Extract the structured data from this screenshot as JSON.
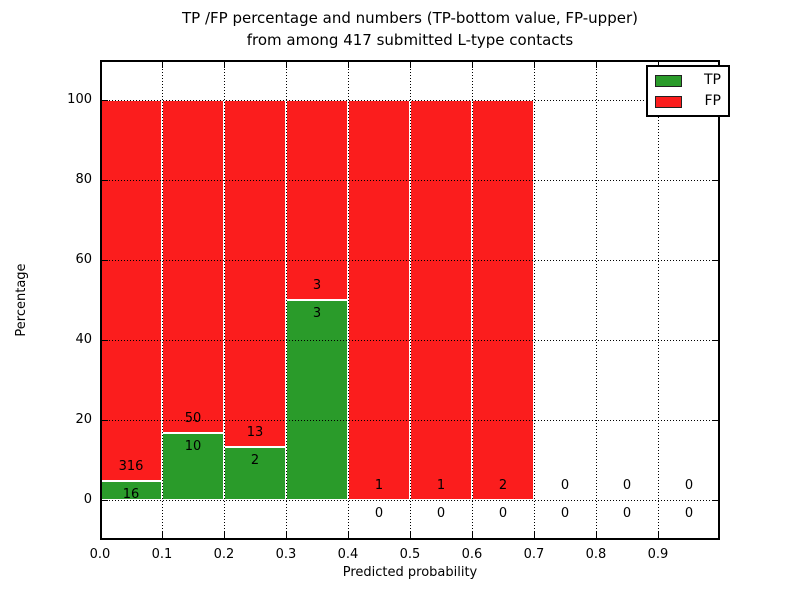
{
  "title": {
    "line1": "TP /FP percentage and numbers (TP-bottom value, FP-upper)",
    "line2": "from among 417 submitted L-type contacts"
  },
  "axes": {
    "xlabel": "Predicted probability",
    "ylabel": "Percentage"
  },
  "legend": {
    "position": "upper right",
    "entries": [
      {
        "label": "TP",
        "color": "#2a9b2a"
      },
      {
        "label": "FP",
        "color": "#fb1d1d"
      }
    ]
  },
  "chart_data": {
    "type": "bar",
    "stacked": true,
    "normalized": "each bin scaled to 100%, value labels show raw counts (TP-bottom, FP-upper)",
    "title": "TP /FP percentage and numbers (TP-bottom value, FP-upper)\nfrom among 417 submitted L-type contacts",
    "xlabel": "Predicted probability",
    "ylabel": "Percentage",
    "total_submitted_contacts": 417,
    "xlim": [
      0.0,
      1.0
    ],
    "ylim": [
      -10,
      110
    ],
    "grid": true,
    "grid_style": "dotted black, drawn above bars",
    "bins": {
      "starts": [
        0.0,
        0.1,
        0.2,
        0.3,
        0.4,
        0.5,
        0.6,
        0.7,
        0.8,
        0.9
      ],
      "width": 0.1
    },
    "x_ticks": [
      0.0,
      0.1,
      0.2,
      0.3,
      0.4,
      0.5,
      0.6,
      0.7,
      0.8,
      0.9
    ],
    "x_tick_labels": [
      "0.0",
      "0.1",
      "0.2",
      "0.3",
      "0.4",
      "0.5",
      "0.6",
      "0.7",
      "0.8",
      "0.9"
    ],
    "y_ticks": [
      0,
      20,
      40,
      60,
      80,
      100
    ],
    "y_tick_labels": [
      "0",
      "20",
      "40",
      "60",
      "80",
      "100"
    ],
    "series": [
      {
        "name": "TP",
        "color": "#2a9b2a",
        "counts": [
          16,
          10,
          2,
          3,
          0,
          0,
          0,
          0,
          0,
          0
        ],
        "percent": [
          4.82,
          16.67,
          13.33,
          50.0,
          0,
          0,
          0,
          0,
          0,
          0
        ]
      },
      {
        "name": "FP",
        "color": "#fb1d1d",
        "counts": [
          316,
          50,
          13,
          3,
          1,
          1,
          2,
          0,
          0,
          0
        ],
        "percent": [
          95.18,
          83.33,
          86.67,
          50.0,
          100.0,
          100.0,
          100.0,
          0,
          0,
          0
        ]
      }
    ]
  }
}
